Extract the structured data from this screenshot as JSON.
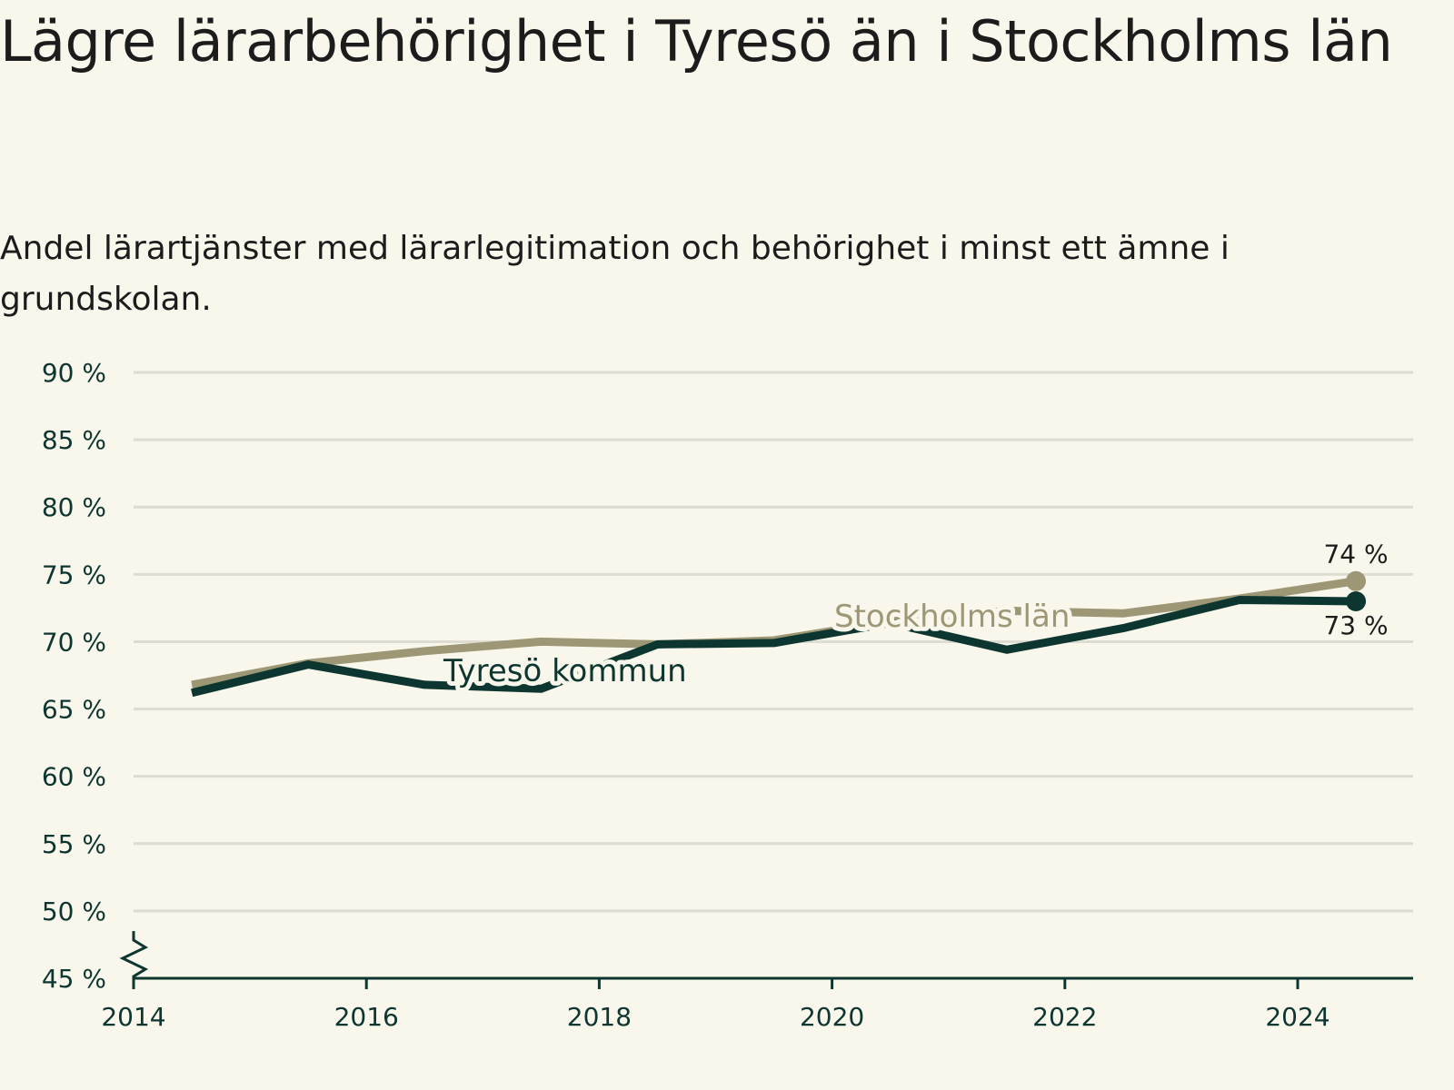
{
  "title": "Lägre lärarbehörighet i Tyresö än i Stockholms län",
  "subtitle": "Andel lärartjänster med lärarlegitimation och behörighet i minst ett ämne i grundskolan.",
  "colors": {
    "background": "#f9f7ec",
    "tyreso": "#0d3630",
    "stockholm": "#9d9775",
    "grid": "#dddcd2",
    "axis": "#0d3630"
  },
  "chart_data": {
    "type": "line",
    "x": [
      2015,
      2016,
      2017,
      2018,
      2019,
      2020,
      2021,
      2022,
      2023,
      2024,
      2025
    ],
    "series": [
      {
        "name": "Stockholms län",
        "values": [
          66.8,
          68.4,
          69.3,
          70.0,
          69.8,
          70.1,
          71.5,
          72.3,
          72.1,
          73.2,
          74.5
        ]
      },
      {
        "name": "Tyresö kommun",
        "values": [
          66.2,
          68.3,
          66.8,
          66.5,
          69.8,
          69.9,
          71.4,
          69.4,
          71.0,
          73.1,
          73.0
        ]
      }
    ],
    "end_labels": [
      {
        "series": "Stockholms län",
        "text": "74 %"
      },
      {
        "series": "Tyresö kommun",
        "text": "73 %"
      }
    ],
    "x_ticks": [
      2014,
      2016,
      2018,
      2020,
      2022,
      2024
    ],
    "x_tick_labels": [
      "2014",
      "2016",
      "2018",
      "2020",
      "2022",
      "2024"
    ],
    "y_ticks": [
      45,
      50,
      55,
      60,
      65,
      70,
      75,
      80,
      85,
      90
    ],
    "y_tick_labels": [
      "45 %",
      "50 %",
      "55 %",
      "60 %",
      "65 %",
      "70 %",
      "75 %",
      "80 %",
      "85 %",
      "90 %"
    ],
    "xlim": [
      2014,
      2025.5
    ],
    "ylim": [
      45,
      90
    ],
    "y_axis_break": true,
    "grid": true,
    "legend": "inline labels"
  }
}
